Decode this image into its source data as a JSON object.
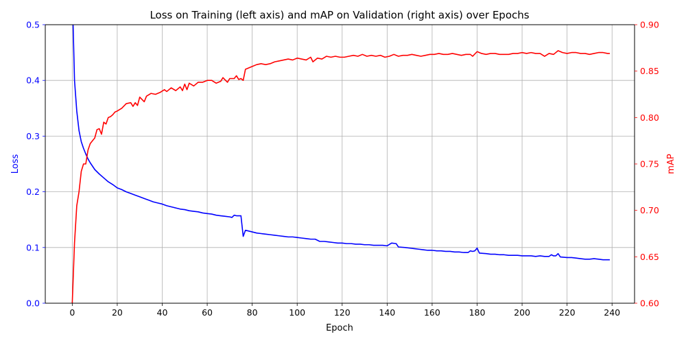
{
  "chart_data": {
    "type": "line",
    "title": "Loss on Training (left axis) and mAP on Validation (right axis) over Epochs",
    "xlabel": "Epoch",
    "ylabel_left": "Loss",
    "ylabel_right": "mAP",
    "xlim": [
      -12,
      250
    ],
    "ylim_left": [
      0,
      0.5
    ],
    "ylim_right": [
      0.6,
      0.9
    ],
    "grid": true,
    "x_ticks": [
      0,
      20,
      40,
      60,
      80,
      100,
      120,
      140,
      160,
      180,
      200,
      220,
      240
    ],
    "y_ticks_left": [
      0.0,
      0.1,
      0.2,
      0.3,
      0.4,
      0.5
    ],
    "y_ticks_right": [
      0.6,
      0.65,
      0.7,
      0.75,
      0.8,
      0.85,
      0.9
    ],
    "colors": {
      "loss": "#0000ff",
      "map": "#ff0000"
    },
    "series": [
      {
        "axis": "left",
        "color": "#0000ff",
        "points": [
          [
            0,
            0.56
          ],
          [
            1,
            0.4
          ],
          [
            2,
            0.345
          ],
          [
            3,
            0.31
          ],
          [
            4,
            0.29
          ],
          [
            5,
            0.278
          ],
          [
            6,
            0.268
          ],
          [
            7,
            0.259
          ],
          [
            8,
            0.252
          ],
          [
            9,
            0.246
          ],
          [
            10,
            0.24
          ],
          [
            12,
            0.232
          ],
          [
            14,
            0.225
          ],
          [
            16,
            0.218
          ],
          [
            18,
            0.213
          ],
          [
            20,
            0.207
          ],
          [
            22,
            0.204
          ],
          [
            24,
            0.2
          ],
          [
            26,
            0.197
          ],
          [
            28,
            0.194
          ],
          [
            30,
            0.191
          ],
          [
            32,
            0.188
          ],
          [
            34,
            0.185
          ],
          [
            36,
            0.182
          ],
          [
            38,
            0.18
          ],
          [
            40,
            0.178
          ],
          [
            42,
            0.175
          ],
          [
            44,
            0.173
          ],
          [
            46,
            0.171
          ],
          [
            48,
            0.169
          ],
          [
            50,
            0.168
          ],
          [
            52,
            0.166
          ],
          [
            54,
            0.165
          ],
          [
            56,
            0.164
          ],
          [
            58,
            0.162
          ],
          [
            60,
            0.161
          ],
          [
            62,
            0.16
          ],
          [
            64,
            0.158
          ],
          [
            66,
            0.157
          ],
          [
            68,
            0.156
          ],
          [
            70,
            0.155
          ],
          [
            71,
            0.154
          ],
          [
            72,
            0.158
          ],
          [
            73,
            0.157
          ],
          [
            74,
            0.157
          ],
          [
            75,
            0.157
          ],
          [
            76,
            0.12
          ],
          [
            77,
            0.131
          ],
          [
            78,
            0.13
          ],
          [
            80,
            0.128
          ],
          [
            82,
            0.126
          ],
          [
            84,
            0.125
          ],
          [
            86,
            0.124
          ],
          [
            88,
            0.123
          ],
          [
            90,
            0.122
          ],
          [
            92,
            0.121
          ],
          [
            94,
            0.12
          ],
          [
            96,
            0.119
          ],
          [
            98,
            0.119
          ],
          [
            100,
            0.118
          ],
          [
            102,
            0.117
          ],
          [
            104,
            0.116
          ],
          [
            106,
            0.115
          ],
          [
            108,
            0.115
          ],
          [
            110,
            0.111
          ],
          [
            112,
            0.111
          ],
          [
            114,
            0.11
          ],
          [
            116,
            0.109
          ],
          [
            118,
            0.108
          ],
          [
            120,
            0.108
          ],
          [
            122,
            0.107
          ],
          [
            124,
            0.107
          ],
          [
            126,
            0.106
          ],
          [
            128,
            0.106
          ],
          [
            130,
            0.105
          ],
          [
            132,
            0.105
          ],
          [
            134,
            0.104
          ],
          [
            136,
            0.104
          ],
          [
            138,
            0.104
          ],
          [
            140,
            0.103
          ],
          [
            142,
            0.108
          ],
          [
            144,
            0.107
          ],
          [
            145,
            0.101
          ],
          [
            148,
            0.1
          ],
          [
            150,
            0.099
          ],
          [
            152,
            0.098
          ],
          [
            154,
            0.097
          ],
          [
            156,
            0.096
          ],
          [
            158,
            0.095
          ],
          [
            160,
            0.095
          ],
          [
            162,
            0.094
          ],
          [
            164,
            0.094
          ],
          [
            166,
            0.093
          ],
          [
            168,
            0.093
          ],
          [
            170,
            0.092
          ],
          [
            172,
            0.092
          ],
          [
            174,
            0.091
          ],
          [
            176,
            0.091
          ],
          [
            177,
            0.094
          ],
          [
            178,
            0.093
          ],
          [
            179,
            0.094
          ],
          [
            180,
            0.099
          ],
          [
            181,
            0.09
          ],
          [
            184,
            0.089
          ],
          [
            186,
            0.088
          ],
          [
            188,
            0.088
          ],
          [
            190,
            0.087
          ],
          [
            192,
            0.087
          ],
          [
            194,
            0.086
          ],
          [
            196,
            0.086
          ],
          [
            198,
            0.086
          ],
          [
            200,
            0.085
          ],
          [
            202,
            0.085
          ],
          [
            204,
            0.085
          ],
          [
            206,
            0.084
          ],
          [
            208,
            0.085
          ],
          [
            210,
            0.084
          ],
          [
            212,
            0.084
          ],
          [
            213,
            0.087
          ],
          [
            214,
            0.085
          ],
          [
            215,
            0.085
          ],
          [
            216,
            0.089
          ],
          [
            217,
            0.083
          ],
          [
            220,
            0.082
          ],
          [
            222,
            0.082
          ],
          [
            224,
            0.081
          ],
          [
            226,
            0.08
          ],
          [
            228,
            0.079
          ],
          [
            230,
            0.079
          ],
          [
            232,
            0.08
          ],
          [
            234,
            0.079
          ],
          [
            236,
            0.078
          ],
          [
            238,
            0.078
          ],
          [
            239,
            0.078
          ]
        ]
      },
      {
        "axis": "right",
        "color": "#ff0000",
        "points": [
          [
            0,
            0.6
          ],
          [
            1,
            0.665
          ],
          [
            2,
            0.705
          ],
          [
            3,
            0.72
          ],
          [
            4,
            0.742
          ],
          [
            5,
            0.75
          ],
          [
            6,
            0.75
          ],
          [
            7,
            0.765
          ],
          [
            8,
            0.772
          ],
          [
            9,
            0.775
          ],
          [
            10,
            0.778
          ],
          [
            11,
            0.787
          ],
          [
            12,
            0.788
          ],
          [
            13,
            0.782
          ],
          [
            14,
            0.795
          ],
          [
            15,
            0.793
          ],
          [
            16,
            0.8
          ],
          [
            17,
            0.801
          ],
          [
            18,
            0.803
          ],
          [
            19,
            0.806
          ],
          [
            20,
            0.807
          ],
          [
            22,
            0.81
          ],
          [
            24,
            0.815
          ],
          [
            26,
            0.816
          ],
          [
            27,
            0.812
          ],
          [
            28,
            0.816
          ],
          [
            29,
            0.813
          ],
          [
            30,
            0.822
          ],
          [
            32,
            0.817
          ],
          [
            33,
            0.823
          ],
          [
            35,
            0.826
          ],
          [
            37,
            0.825
          ],
          [
            39,
            0.827
          ],
          [
            41,
            0.83
          ],
          [
            42,
            0.828
          ],
          [
            44,
            0.832
          ],
          [
            46,
            0.829
          ],
          [
            48,
            0.833
          ],
          [
            49,
            0.829
          ],
          [
            50,
            0.836
          ],
          [
            51,
            0.83
          ],
          [
            52,
            0.837
          ],
          [
            54,
            0.834
          ],
          [
            56,
            0.838
          ],
          [
            58,
            0.838
          ],
          [
            60,
            0.84
          ],
          [
            62,
            0.84
          ],
          [
            64,
            0.837
          ],
          [
            66,
            0.839
          ],
          [
            67,
            0.843
          ],
          [
            69,
            0.838
          ],
          [
            70,
            0.842
          ],
          [
            72,
            0.842
          ],
          [
            73,
            0.845
          ],
          [
            74,
            0.841
          ],
          [
            75,
            0.842
          ],
          [
            76,
            0.84
          ],
          [
            77,
            0.852
          ],
          [
            78,
            0.853
          ],
          [
            80,
            0.855
          ],
          [
            82,
            0.857
          ],
          [
            84,
            0.858
          ],
          [
            86,
            0.857
          ],
          [
            88,
            0.858
          ],
          [
            90,
            0.86
          ],
          [
            92,
            0.861
          ],
          [
            94,
            0.862
          ],
          [
            96,
            0.863
          ],
          [
            98,
            0.862
          ],
          [
            100,
            0.864
          ],
          [
            102,
            0.863
          ],
          [
            104,
            0.862
          ],
          [
            106,
            0.865
          ],
          [
            107,
            0.86
          ],
          [
            109,
            0.864
          ],
          [
            111,
            0.863
          ],
          [
            113,
            0.866
          ],
          [
            115,
            0.865
          ],
          [
            117,
            0.866
          ],
          [
            119,
            0.865
          ],
          [
            121,
            0.865
          ],
          [
            123,
            0.866
          ],
          [
            125,
            0.867
          ],
          [
            127,
            0.866
          ],
          [
            129,
            0.868
          ],
          [
            131,
            0.866
          ],
          [
            133,
            0.867
          ],
          [
            135,
            0.866
          ],
          [
            137,
            0.867
          ],
          [
            139,
            0.865
          ],
          [
            141,
            0.866
          ],
          [
            143,
            0.868
          ],
          [
            145,
            0.866
          ],
          [
            147,
            0.867
          ],
          [
            149,
            0.867
          ],
          [
            151,
            0.868
          ],
          [
            153,
            0.867
          ],
          [
            155,
            0.866
          ],
          [
            157,
            0.867
          ],
          [
            159,
            0.868
          ],
          [
            161,
            0.868
          ],
          [
            163,
            0.869
          ],
          [
            165,
            0.868
          ],
          [
            167,
            0.868
          ],
          [
            169,
            0.869
          ],
          [
            171,
            0.868
          ],
          [
            173,
            0.867
          ],
          [
            175,
            0.868
          ],
          [
            177,
            0.868
          ],
          [
            178,
            0.866
          ],
          [
            180,
            0.871
          ],
          [
            182,
            0.869
          ],
          [
            184,
            0.868
          ],
          [
            186,
            0.869
          ],
          [
            188,
            0.869
          ],
          [
            190,
            0.868
          ],
          [
            192,
            0.868
          ],
          [
            194,
            0.868
          ],
          [
            196,
            0.869
          ],
          [
            198,
            0.869
          ],
          [
            200,
            0.87
          ],
          [
            202,
            0.869
          ],
          [
            204,
            0.87
          ],
          [
            206,
            0.869
          ],
          [
            208,
            0.869
          ],
          [
            210,
            0.866
          ],
          [
            212,
            0.869
          ],
          [
            214,
            0.868
          ],
          [
            216,
            0.872
          ],
          [
            218,
            0.87
          ],
          [
            220,
            0.869
          ],
          [
            222,
            0.87
          ],
          [
            224,
            0.87
          ],
          [
            226,
            0.869
          ],
          [
            228,
            0.869
          ],
          [
            230,
            0.868
          ],
          [
            232,
            0.869
          ],
          [
            234,
            0.87
          ],
          [
            236,
            0.87
          ],
          [
            238,
            0.869
          ],
          [
            239,
            0.869
          ]
        ]
      }
    ]
  }
}
